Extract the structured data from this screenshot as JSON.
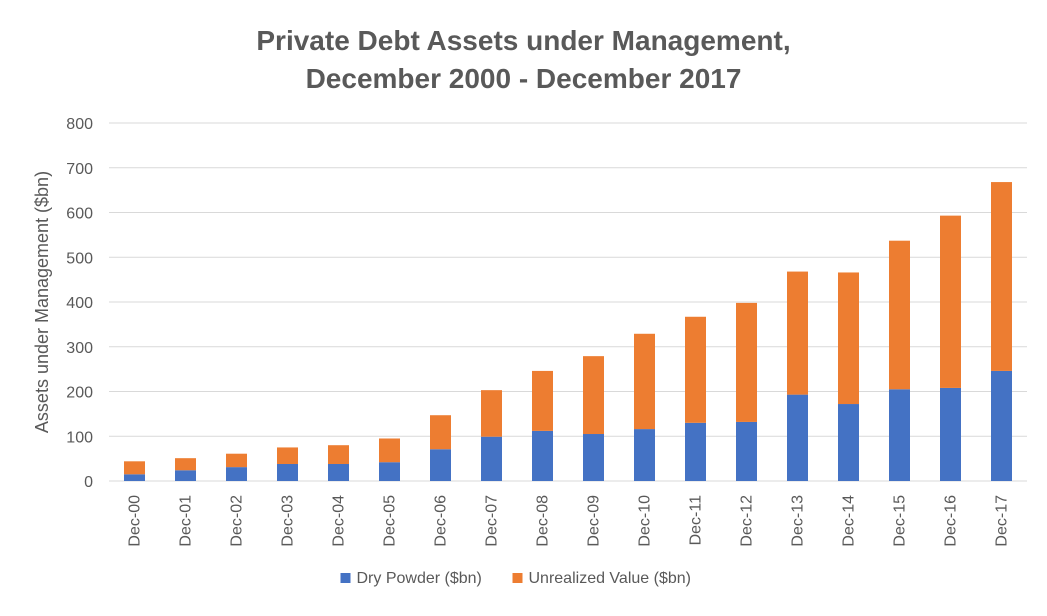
{
  "chart_data": {
    "type": "bar",
    "stacked": true,
    "title_line1": "Private Debt Assets under Management,",
    "title_line2": "December 2000 - December 2017",
    "xlabel": "",
    "ylabel": "Assets under Management ($bn)",
    "ylim": [
      0,
      800
    ],
    "yticks": [
      0,
      100,
      200,
      300,
      400,
      500,
      600,
      700,
      800
    ],
    "grid": true,
    "legend_position": "bottom",
    "categories": [
      "Dec-00",
      "Dec-01",
      "Dec-02",
      "Dec-03",
      "Dec-04",
      "Dec-05",
      "Dec-06",
      "Dec-07",
      "Dec-08",
      "Dec-09",
      "Dec-10",
      "Dec-11",
      "Dec-12",
      "Dec-13",
      "Dec-14",
      "Dec-15",
      "Dec-16",
      "Dec-17"
    ],
    "series": [
      {
        "name": "Dry Powder ($bn)",
        "color": "#4472c4",
        "values": [
          15,
          24,
          31,
          38,
          38,
          42,
          71,
          99,
          112,
          105,
          116,
          130,
          132,
          193,
          172,
          205,
          208,
          246
        ]
      },
      {
        "name": "Unrealized Value ($bn)",
        "color": "#ed7d31",
        "values": [
          29,
          27,
          30,
          37,
          42,
          53,
          76,
          104,
          134,
          174,
          213,
          237,
          266,
          275,
          294,
          332,
          385,
          422
        ]
      }
    ]
  }
}
